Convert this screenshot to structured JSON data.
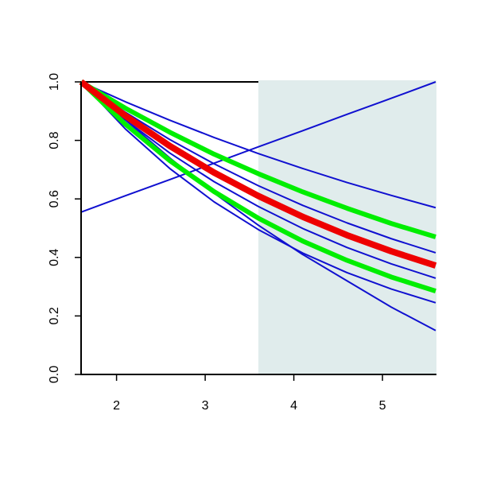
{
  "chart_data": {
    "type": "line",
    "x": [
      1.6,
      2.1,
      2.6,
      3.1,
      3.6,
      4.1,
      4.6,
      5.1,
      5.6
    ],
    "xlim": [
      1.6,
      5.6
    ],
    "xticks": [
      2,
      3,
      4,
      5
    ],
    "ylim": [
      0,
      1
    ],
    "yticks": [
      {
        "value": 0,
        "label": "0.0"
      },
      0.2,
      0.4,
      0.6,
      0.8,
      {
        "value": 1,
        "label": "1.0"
      }
    ],
    "shade": {
      "x": [
        3.6,
        5.6
      ],
      "color": "#e0ecec"
    },
    "series": [
      {
        "color": "#1010d0",
        "width": 2,
        "values": [
          0.555,
          0.611,
          0.666,
          0.722,
          0.778,
          0.833,
          0.889,
          0.944,
          1.0
        ]
      },
      {
        "color": "#1010d0",
        "width": 2,
        "values": [
          1,
          0.932,
          0.869,
          0.81,
          0.755,
          0.704,
          0.656,
          0.612,
          0.57
        ]
      },
      {
        "color": "#1010d0",
        "width": 2,
        "values": [
          1,
          0.896,
          0.803,
          0.72,
          0.645,
          0.578,
          0.518,
          0.464,
          0.416
        ]
      },
      {
        "color": "#1010d0",
        "width": 2,
        "values": [
          1,
          0.87,
          0.757,
          0.659,
          0.574,
          0.499,
          0.434,
          0.378,
          0.329
        ]
      },
      {
        "color": "#1010d0",
        "width": 2,
        "values": [
          1,
          0.839,
          0.704,
          0.59,
          0.495,
          0.415,
          0.348,
          0.292,
          0.245
        ]
      },
      {
        "color": "#1010d0",
        "width": 2,
        "values": [
          1,
          0.87,
          0.74,
          0.62,
          0.51,
          0.41,
          0.32,
          0.23,
          0.15
        ]
      },
      {
        "color": "#00ee00",
        "width": 6,
        "values": [
          1,
          0.91,
          0.828,
          0.753,
          0.686,
          0.624,
          0.568,
          0.516,
          0.47
        ]
      },
      {
        "color": "#00ee00",
        "width": 6,
        "values": [
          1,
          0.855,
          0.731,
          0.625,
          0.534,
          0.456,
          0.39,
          0.333,
          0.285
        ]
      },
      {
        "color": "#ee0000",
        "width": 8,
        "values": [
          1,
          0.884,
          0.781,
          0.69,
          0.61,
          0.539,
          0.476,
          0.421,
          0.372
        ]
      }
    ]
  }
}
